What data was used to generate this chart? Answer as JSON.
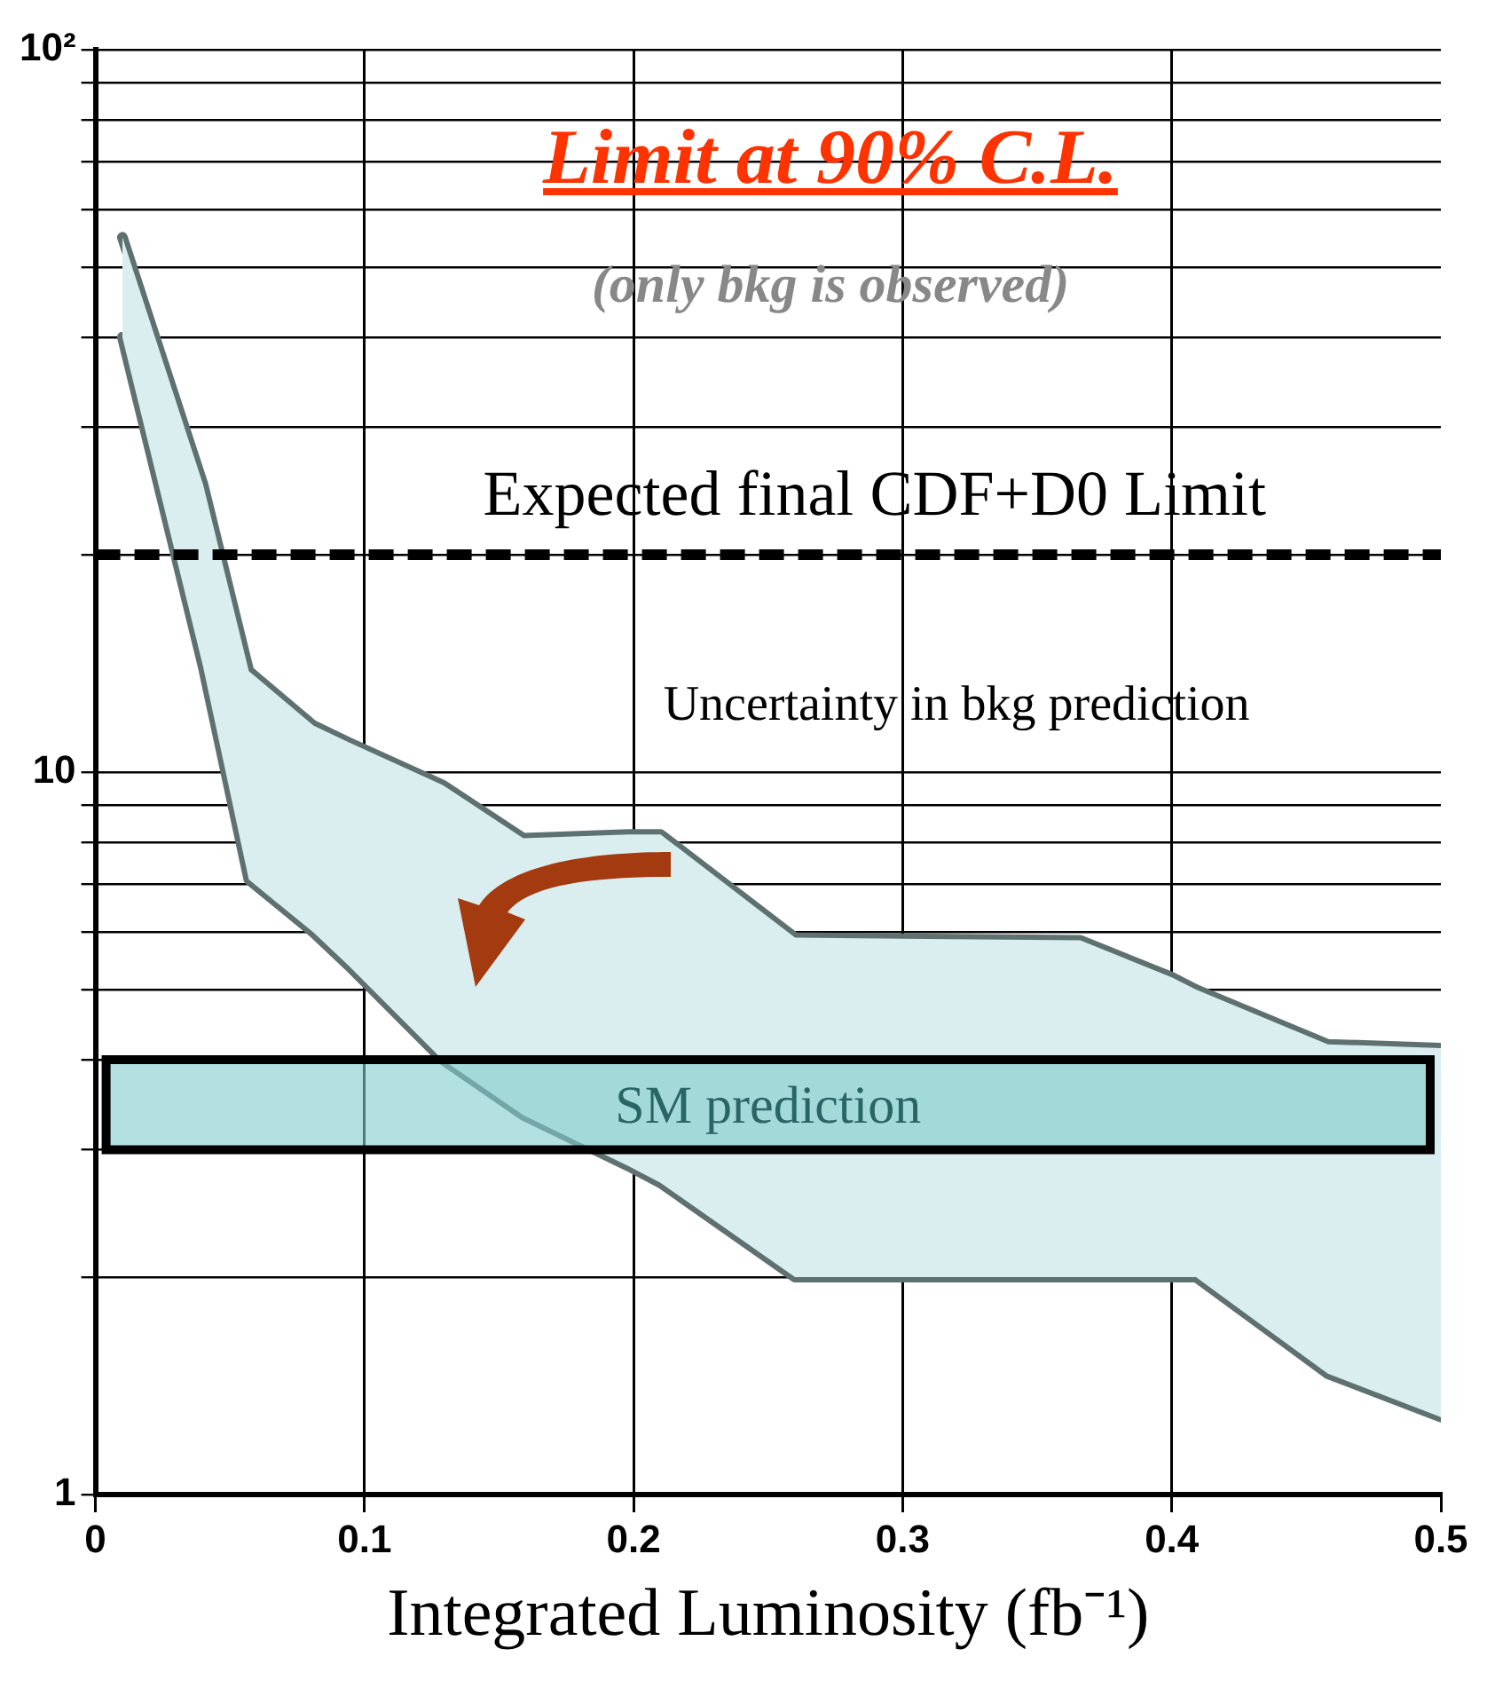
{
  "chart_data": {
    "type": "line",
    "title": "Limit at 90% C.L.",
    "subtitle": "(only bkg is observed)",
    "xlabel": "Integrated Luminosity (fb⁻¹)",
    "xlim": [
      0,
      0.5
    ],
    "xticks": [
      0,
      0.1,
      0.2,
      0.3,
      0.4,
      0.5
    ],
    "ylim": [
      1,
      100
    ],
    "log": "y",
    "yticks": [
      1,
      {
        "value": 2,
        "label": null
      },
      {
        "value": 3,
        "label": null
      },
      {
        "value": 4,
        "label": null
      },
      {
        "value": 5,
        "label": null
      },
      {
        "value": 6,
        "label": null
      },
      {
        "value": 7,
        "label": null
      },
      {
        "value": 8,
        "label": null
      },
      {
        "value": 9,
        "label": null
      },
      10,
      {
        "value": 20,
        "label": null
      },
      {
        "value": 30,
        "label": null
      },
      {
        "value": 40,
        "label": null
      },
      {
        "value": 50,
        "label": null
      },
      {
        "value": 60,
        "label": null
      },
      {
        "value": 70,
        "label": null
      },
      {
        "value": 80,
        "label": null
      },
      {
        "value": 90,
        "label": null
      },
      {
        "value": 100,
        "label": "10²"
      }
    ],
    "grid": true,
    "legend": false,
    "x": [
      0.01,
      0.04,
      0.057,
      0.081,
      0.094,
      0.129,
      0.159,
      0.198,
      0.21,
      0.26,
      0.366,
      0.4,
      0.409,
      0.458,
      0.5
    ],
    "series": [
      {
        "color": "#5f7070",
        "values": [
          55,
          25,
          13.8,
          11.6,
          11,
          9.6,
          8.1,
          8.2,
          8.2,
          5.9,
          5.85,
          5.2,
          5.0,
          4.2,
          4.15
        ],
        "upper": [
          55,
          25,
          13.8,
          11.6,
          11,
          9.6,
          8.1,
          8.2,
          8.2,
          5.9,
          5.85,
          5.2,
          5.0,
          4.2,
          4.15
        ],
        "lower": [
          40,
          14,
          7.1,
          6.0,
          5.4,
          4.0,
          3.35,
          2.85,
          2.7,
          2.0,
          2.0,
          2.0,
          2.0,
          1.47,
          1.28
        ]
      },
      {
        "color": "#5f7070",
        "values": [
          40,
          14,
          7.1,
          6.0,
          5.4,
          4.0,
          3.35,
          2.85,
          2.7,
          2.0,
          2.0,
          2.0,
          2.0,
          1.47,
          1.28
        ]
      }
    ],
    "ref_lines": [
      {
        "axis": "y",
        "value": 20,
        "label": "Expected final CDF+D0 Limit",
        "color": "#000000",
        "line_style": "dashed"
      }
    ],
    "bands": [
      {
        "axis": "y",
        "from": 3,
        "to": 4,
        "label": "SM prediction",
        "color": "#80cccc"
      }
    ],
    "annotations": [
      "Uncertainty in bkg prediction"
    ]
  }
}
